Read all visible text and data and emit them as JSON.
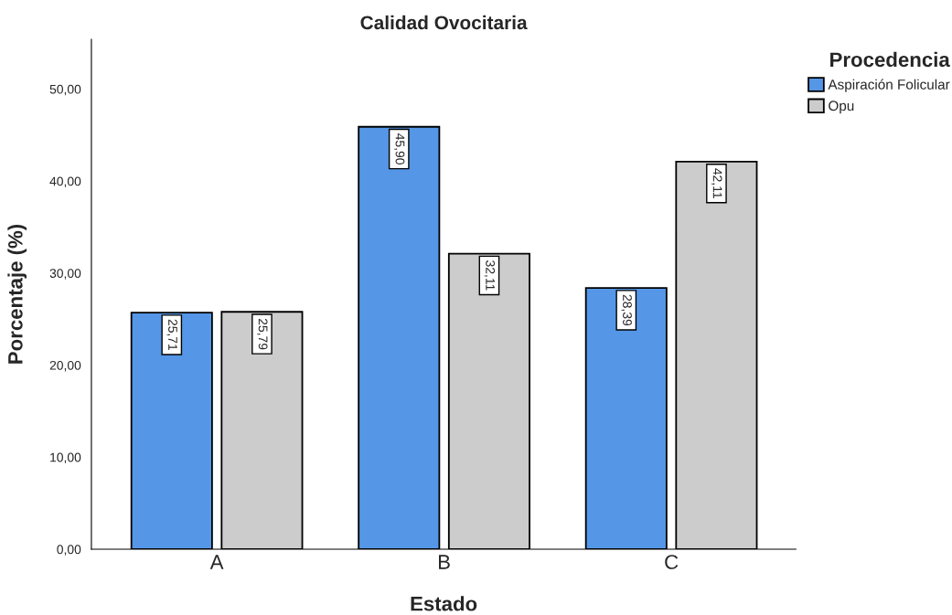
{
  "chart_data": {
    "type": "bar",
    "title": "Calidad Ovocitaria",
    "xlabel": "Estado",
    "ylabel": "Porcentaje (%)",
    "legend_title": "Procedencia",
    "categories": [
      "A",
      "B",
      "C"
    ],
    "series": [
      {
        "name": "Aspiración Folicular",
        "color": "#5596e6",
        "values": [
          25.71,
          45.9,
          28.39
        ],
        "value_labels": [
          "25,71",
          "45,90",
          "28,39"
        ]
      },
      {
        "name": "Opu",
        "color": "#cccccc",
        "values": [
          25.79,
          32.11,
          42.11
        ],
        "value_labels": [
          "25,79",
          "32,11",
          "42,11"
        ]
      }
    ],
    "ylim": [
      0,
      55.4
    ],
    "yticks": [
      {
        "value": 0,
        "label": "0,00"
      },
      {
        "value": 10,
        "label": "10,00"
      },
      {
        "value": 20,
        "label": "20,00"
      },
      {
        "value": 30,
        "label": "30,00"
      },
      {
        "value": 40,
        "label": "40,00"
      },
      {
        "value": 50,
        "label": "50,00"
      }
    ],
    "grid": false,
    "legend": "top right"
  }
}
